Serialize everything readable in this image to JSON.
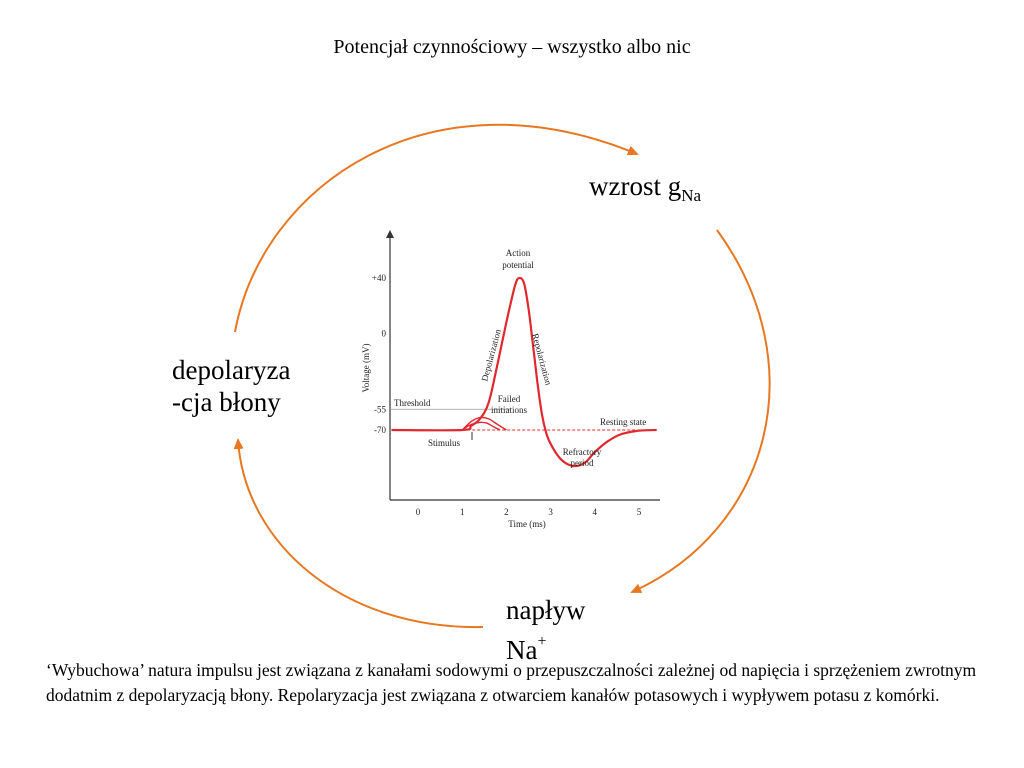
{
  "title": "Potencjał czynnościowy – wszystko albo nic",
  "cycle": {
    "gna_label": "wzrost g",
    "gna_sub": "Na",
    "depol_line1": "depolaryza",
    "depol_line2": "-cja błony",
    "influx_line1": "napływ",
    "influx_line2": "Na",
    "influx_sup": "+",
    "arrow_color": "#e87722"
  },
  "chart_data": {
    "type": "line",
    "ylabel": "Voltage (mV)",
    "xlabel": "Time (ms)",
    "xlim": [
      -0.5,
      5.5
    ],
    "ylim": [
      -100,
      60
    ],
    "x_ticks": [
      "0",
      "1",
      "2",
      "3",
      "4",
      "5"
    ],
    "y_ticks": [
      "+40",
      "0",
      "-55",
      "-70"
    ],
    "y_tick_values": [
      40,
      0,
      -55,
      -70
    ],
    "threshold": -55,
    "resting": -70,
    "series": [
      {
        "color": "#e0282e",
        "x": [
          -0.6,
          1.0,
          1.2,
          1.4,
          1.6,
          1.8,
          2.0,
          2.2,
          2.3,
          2.4,
          2.5,
          2.6,
          2.7,
          2.8,
          2.9,
          3.0,
          3.2,
          3.4,
          3.6,
          3.8,
          4.0,
          4.3,
          4.6,
          5.0,
          5.4
        ],
        "y": [
          -70,
          -70,
          -67,
          -62,
          -50,
          -22,
          8,
          35,
          40,
          36,
          18,
          -8,
          -35,
          -58,
          -72,
          -80,
          -90,
          -95,
          -96,
          -93,
          -86,
          -78,
          -73,
          -70.5,
          -70
        ]
      },
      {
        "color": "#e0282e",
        "x": [
          1.0,
          1.2,
          1.4,
          1.6,
          1.8,
          2.0
        ],
        "y": [
          -70,
          -64,
          -61,
          -62,
          -66,
          -70
        ]
      },
      {
        "color": "#e0282e",
        "x": [
          1.0,
          1.2,
          1.4,
          1.55,
          1.7,
          1.85
        ],
        "y": [
          -70,
          -66,
          -64.5,
          -65,
          -67.5,
          -70
        ]
      }
    ],
    "annotations": {
      "threshold": "Threshold",
      "resting": "Resting state",
      "stimulus": "Stimulus",
      "action_potential_1": "Action",
      "action_potential_2": "potential",
      "depolarization": "Depolarization",
      "repolarization": "Repolarization",
      "failed_1": "Failed",
      "failed_2": "initiations",
      "refractory_1": "Refractory",
      "refractory_2": "period"
    }
  },
  "caption": "‘Wybuchowa’ natura impulsu jest związana z kanałami sodowymi o przepuszczalności zależnej od napięcia i sprzężeniem zwrotnym dodatnim z depolaryzacją błony. Repolaryzacja jest związana z otwarciem kanałów potasowych i wypływem potasu z komórki."
}
